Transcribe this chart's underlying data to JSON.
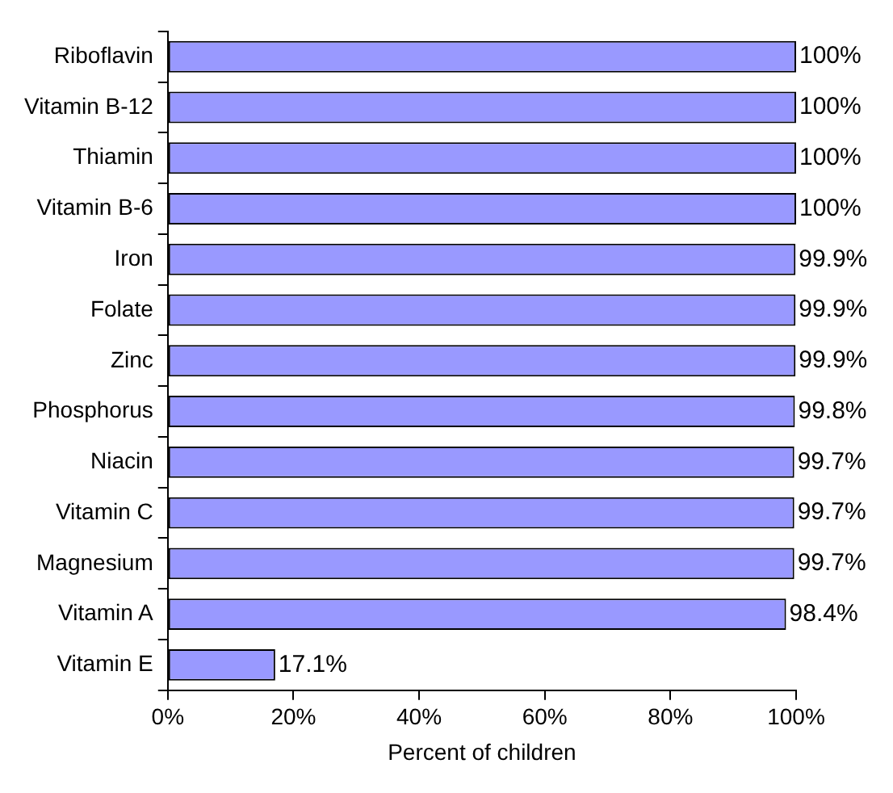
{
  "chart_data": {
    "type": "bar",
    "orientation": "horizontal",
    "xlabel": "Percent of children",
    "categories": [
      "Riboflavin",
      "Vitamin B-12",
      "Thiamin",
      "Vitamin B-6",
      "Iron",
      "Folate",
      "Zinc",
      "Phosphorus",
      "Niacin",
      "Vitamin C",
      "Magnesium",
      "Vitamin A",
      "Vitamin E"
    ],
    "values": [
      100,
      100,
      100,
      100,
      99.9,
      99.9,
      99.9,
      99.8,
      99.7,
      99.7,
      99.7,
      98.4,
      17.1
    ],
    "value_labels": [
      "100%",
      "100%",
      "100%",
      "100%",
      "99.9%",
      "99.9%",
      "99.9%",
      "99.8%",
      "99.7%",
      "99.7%",
      "99.7%",
      "98.4%",
      "17.1%"
    ],
    "color": "#9999ff",
    "xlim": [
      0,
      100
    ],
    "xticks": [
      {
        "value": 0,
        "label": "0%"
      },
      {
        "value": 20,
        "label": "20%"
      },
      {
        "value": 40,
        "label": "40%"
      },
      {
        "value": 60,
        "label": "60%"
      },
      {
        "value": 80,
        "label": "80%"
      },
      {
        "value": 100,
        "label": "100%"
      }
    ],
    "grid": false,
    "legend": false
  }
}
